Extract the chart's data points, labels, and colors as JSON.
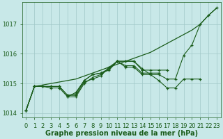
{
  "xlabel": "Graphe pression niveau de la mer (hPa)",
  "hours": [
    0,
    1,
    2,
    3,
    4,
    5,
    6,
    7,
    8,
    9,
    10,
    11,
    12,
    13,
    14,
    15,
    16,
    17,
    18,
    19,
    20,
    21,
    22,
    23
  ],
  "line_smooth": [
    1014.1,
    1014.9,
    1014.95,
    1015.0,
    1015.05,
    1015.1,
    1015.15,
    1015.25,
    1015.35,
    1015.45,
    1015.55,
    1015.65,
    1015.75,
    1015.85,
    1015.95,
    1016.05,
    1016.2,
    1016.35,
    1016.5,
    1016.65,
    1016.8,
    1017.0,
    1017.3,
    1017.55
  ],
  "line_a": [
    1014.1,
    1014.9,
    1014.9,
    1014.9,
    1014.9,
    1014.6,
    1014.6,
    1015.05,
    1015.15,
    1015.25,
    1015.55,
    1015.75,
    1015.55,
    1015.55,
    1015.3,
    1015.3,
    1015.3,
    1015.15,
    1015.15,
    1015.95,
    1016.3,
    1017.0,
    1017.3,
    1017.55
  ],
  "line_b": [
    1014.1,
    1014.9,
    1014.9,
    1014.9,
    1014.9,
    1014.6,
    1014.65,
    1015.1,
    1015.3,
    1015.35,
    1015.5,
    1015.75,
    1015.75,
    1015.75,
    1015.5,
    1015.3,
    1015.1,
    1014.85,
    1014.85,
    1015.15,
    1015.15,
    1015.15,
    null,
    null
  ],
  "line_c": [
    1014.1,
    1014.9,
    1014.9,
    1014.85,
    1014.85,
    1014.55,
    1014.55,
    1015.0,
    1015.2,
    1015.3,
    1015.5,
    1015.75,
    1015.75,
    1015.75,
    1015.45,
    1015.45,
    1015.45,
    1015.45,
    null,
    null,
    null,
    null,
    null,
    null
  ],
  "line_d": [
    null,
    null,
    null,
    null,
    null,
    1014.55,
    1014.7,
    1015.1,
    1015.3,
    1015.35,
    1015.45,
    1015.75,
    1015.6,
    1015.6,
    1015.35,
    1015.35,
    1015.35,
    null,
    null,
    null,
    null,
    null,
    null,
    null
  ],
  "bg_color": "#c8e8e8",
  "line_color": "#1a5c1a",
  "grid_color": "#a0c8c8",
  "ylim": [
    1013.85,
    1017.75
  ],
  "yticks": [
    1014,
    1015,
    1016,
    1017
  ],
  "xlabel_fontsize": 7,
  "tick_fontsize": 6
}
